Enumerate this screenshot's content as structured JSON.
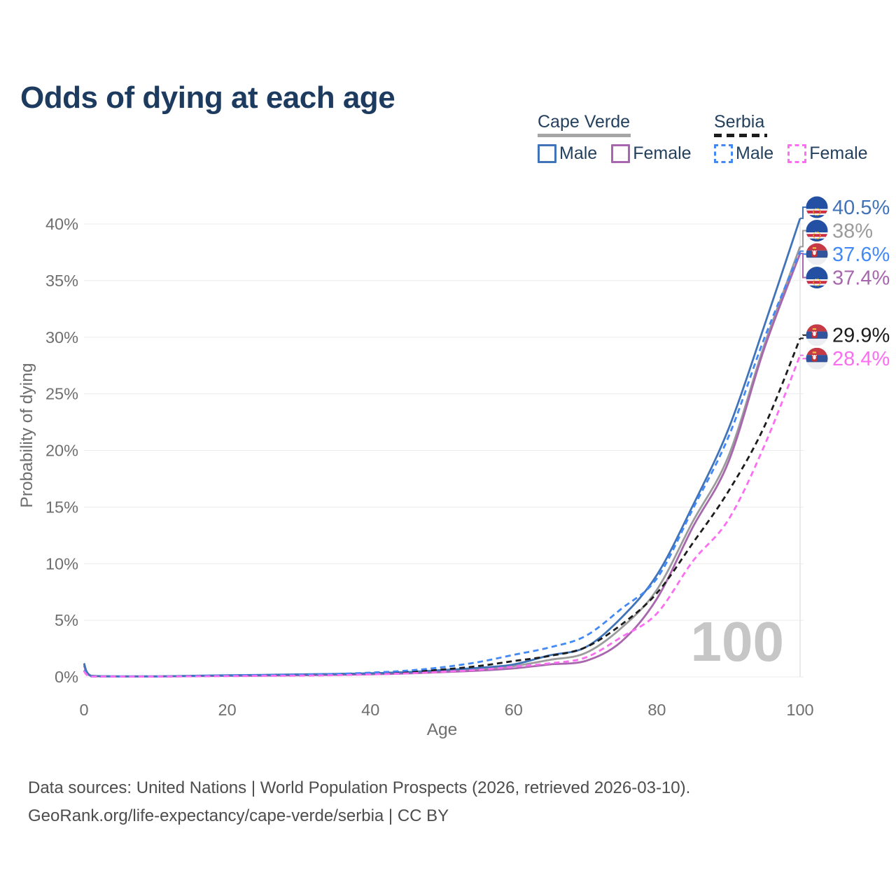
{
  "title": "Odds of dying at each age",
  "legend": {
    "groups": [
      {
        "title": "Cape Verde",
        "line_style": "solid",
        "underline_color": "#a6a6a6",
        "underline_width": 133,
        "items": [
          {
            "label": "Male",
            "color": "#4173b9"
          },
          {
            "label": "Female",
            "color": "#a766ae"
          }
        ]
      },
      {
        "title": "Serbia",
        "line_style": "dashed",
        "underline_color": "#1c1c1c",
        "underline_width": 76,
        "items": [
          {
            "label": "Male",
            "color": "#4289f5"
          },
          {
            "label": "Female",
            "color": "#fb6df1"
          }
        ]
      }
    ]
  },
  "chart_data": {
    "type": "line",
    "title": "Odds of dying at each age",
    "xlabel": "Age",
    "ylabel": "Probability of dying",
    "xlim": [
      0,
      100
    ],
    "ylim": [
      0,
      42
    ],
    "xticks": [
      0,
      20,
      40,
      60,
      80,
      100
    ],
    "yticks": [
      0,
      5,
      10,
      15,
      20,
      25,
      30,
      35,
      40
    ],
    "ytick_suffix": "%",
    "grid": "horizontal",
    "hover_age_watermark": "100",
    "legend_position": "top-right",
    "ages": [
      0,
      1,
      5,
      10,
      15,
      20,
      25,
      30,
      35,
      40,
      45,
      50,
      55,
      60,
      65,
      70,
      75,
      80,
      85,
      90,
      95,
      100
    ],
    "series": [
      {
        "name": "Cape Verde Male",
        "country": "Cape Verde",
        "sex": "Male",
        "color": "#4173b9",
        "dashed": false,
        "flag": "cape-verde",
        "end_label": "40.5%",
        "values": [
          1.2,
          0.1,
          0.05,
          0.05,
          0.1,
          0.15,
          0.18,
          0.22,
          0.26,
          0.32,
          0.42,
          0.6,
          0.8,
          1.1,
          1.9,
          2.6,
          5.2,
          9.0,
          15.1,
          21.9,
          31.0,
          40.5
        ]
      },
      {
        "name": "Cape Verde Both sexes",
        "country": "Cape Verde",
        "sex": "Both",
        "color": "#9b9b9b",
        "dashed": false,
        "flag": "cape-verde",
        "end_label": "38%",
        "values": [
          1.1,
          0.09,
          0.04,
          0.04,
          0.08,
          0.12,
          0.15,
          0.18,
          0.22,
          0.27,
          0.36,
          0.5,
          0.68,
          0.95,
          1.5,
          2.1,
          4.3,
          7.7,
          13.7,
          19.5,
          29.3,
          38.0
        ]
      },
      {
        "name": "Serbia Male",
        "country": "Serbia",
        "sex": "Male",
        "color": "#4289f5",
        "dashed": true,
        "flag": "serbia",
        "end_label": "37.6%",
        "values": [
          0.6,
          0.05,
          0.03,
          0.03,
          0.07,
          0.12,
          0.15,
          0.19,
          0.26,
          0.38,
          0.55,
          0.85,
          1.3,
          1.95,
          2.6,
          3.6,
          6.0,
          8.7,
          14.8,
          21.2,
          29.9,
          37.6
        ]
      },
      {
        "name": "Cape Verde Female",
        "country": "Cape Verde",
        "sex": "Female",
        "color": "#a766ae",
        "dashed": false,
        "flag": "cape-verde",
        "end_label": "37.4%",
        "values": [
          1.0,
          0.08,
          0.04,
          0.04,
          0.06,
          0.09,
          0.11,
          0.14,
          0.18,
          0.23,
          0.3,
          0.42,
          0.55,
          0.75,
          1.1,
          1.4,
          3.1,
          6.9,
          13.2,
          19.0,
          29.0,
          37.4
        ]
      },
      {
        "name": "Serbia Both sexes",
        "country": "Serbia",
        "sex": "Both",
        "color": "#1c1c1c",
        "dashed": true,
        "flag": "serbia",
        "end_label": "29.9%",
        "values": [
          0.55,
          0.05,
          0.03,
          0.03,
          0.06,
          0.1,
          0.12,
          0.15,
          0.21,
          0.3,
          0.43,
          0.65,
          0.95,
          1.4,
          1.85,
          2.6,
          4.6,
          7.4,
          11.8,
          16.4,
          22.1,
          29.9
        ]
      },
      {
        "name": "Serbia Female",
        "country": "Serbia",
        "sex": "Female",
        "color": "#fb6df1",
        "dashed": true,
        "flag": "serbia",
        "end_label": "28.4%",
        "values": [
          0.5,
          0.04,
          0.03,
          0.03,
          0.05,
          0.07,
          0.09,
          0.11,
          0.15,
          0.22,
          0.31,
          0.45,
          0.62,
          0.9,
          1.2,
          1.7,
          3.5,
          5.6,
          10.2,
          13.9,
          20.4,
          28.4
        ]
      }
    ]
  },
  "flag_icons": {
    "cape-verde": {
      "field": "#2450a4",
      "stripe_red": "#cf2e40",
      "stripe_white": "#ffffff",
      "stars": "#ffcd1e"
    },
    "serbia": {
      "band_red": "#c63a45",
      "band_blue": "#31549b",
      "band_white": "#eceef1",
      "crest_red": "#c23038",
      "crest_crown": "#e8b944",
      "crest_white": "#ffffff"
    }
  },
  "footer": {
    "line1": "Data sources: United Nations | World Population Prospects (2026, retrieved 2026-03-10).",
    "line2": "GeoRank.org/life-expectancy/cape-verde/serbia | CC BY"
  }
}
